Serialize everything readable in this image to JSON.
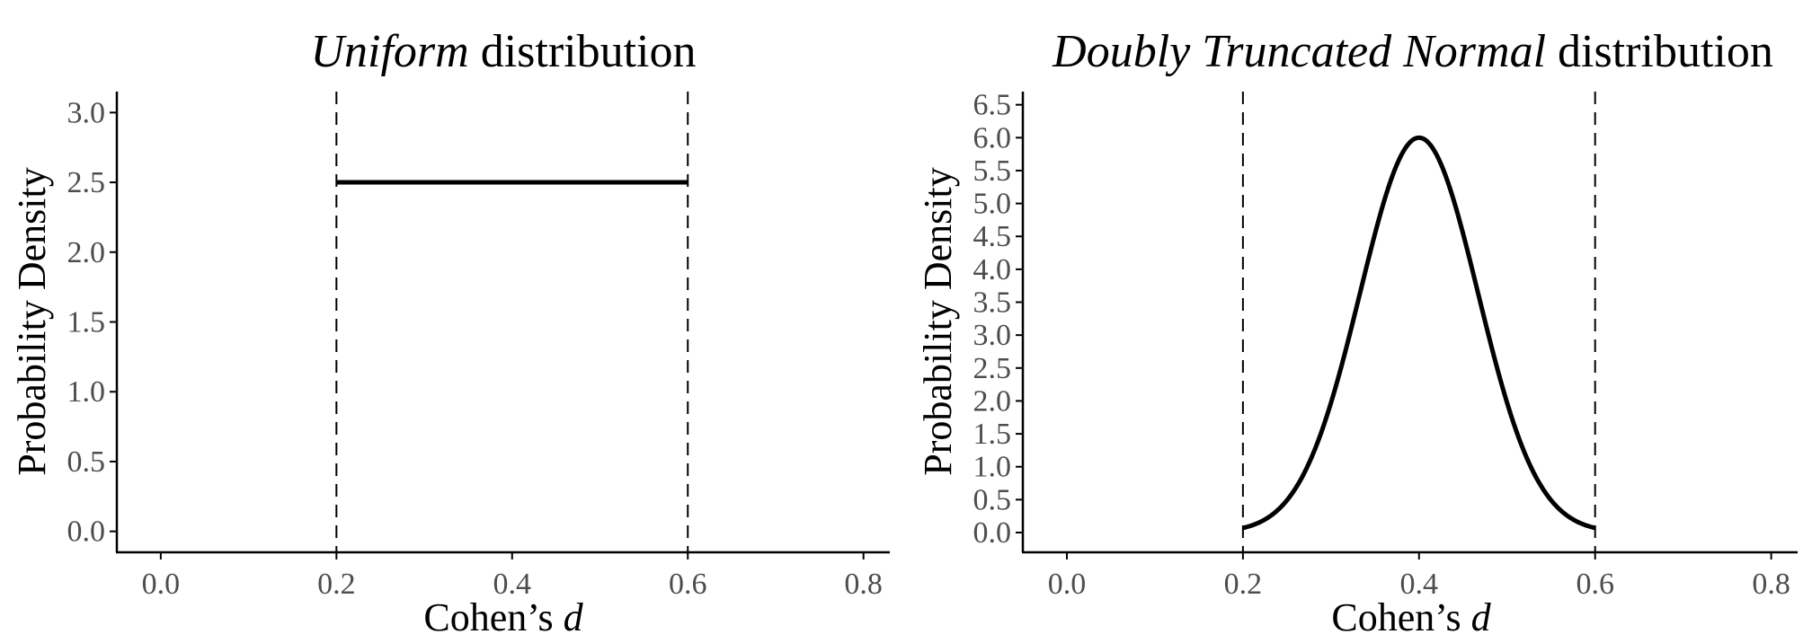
{
  "chart_data": [
    {
      "type": "line",
      "title": "Uniform distribution",
      "title_parts": {
        "italic": "Uniform",
        "plain": " distribution"
      },
      "xlabel": "Cohen’s d",
      "xlabel_parts": {
        "plain": "Cohen’s ",
        "italic": "d"
      },
      "ylabel": "Probability Density",
      "xlim": [
        -0.05,
        0.83
      ],
      "ylim": [
        -0.15,
        3.15
      ],
      "x_ticks": [
        0.0,
        0.2,
        0.4,
        0.6,
        0.8
      ],
      "x_tick_labels": [
        "0.0",
        "0.2",
        "0.4",
        "0.6",
        "0.8"
      ],
      "y_ticks": [
        0.0,
        0.5,
        1.0,
        1.5,
        2.0,
        2.5,
        3.0
      ],
      "y_tick_labels": [
        "0.0",
        "0.5",
        "1.0",
        "1.5",
        "2.0",
        "2.5",
        "3.0"
      ],
      "grid": false,
      "vlines": [
        0.2,
        0.6
      ],
      "series": [
        {
          "distribution": "uniform",
          "x": [
            0.2,
            0.6
          ],
          "y": [
            2.5,
            2.5
          ]
        }
      ]
    },
    {
      "type": "line",
      "title": "Doubly Truncated Normal distribution",
      "title_parts": {
        "italic": "Doubly Truncated Normal",
        "plain": " distribution"
      },
      "xlabel": "Cohen’s d",
      "xlabel_parts": {
        "plain": "Cohen’s ",
        "italic": "d"
      },
      "ylabel": "Probability Density",
      "xlim": [
        -0.05,
        0.83
      ],
      "ylim": [
        -0.3,
        6.7
      ],
      "x_ticks": [
        0.0,
        0.2,
        0.4,
        0.6,
        0.8
      ],
      "x_tick_labels": [
        "0.0",
        "0.2",
        "0.4",
        "0.6",
        "0.8"
      ],
      "y_ticks": [
        0.0,
        0.5,
        1.0,
        1.5,
        2.0,
        2.5,
        3.0,
        3.5,
        4.0,
        4.5,
        5.0,
        5.5,
        6.0,
        6.5
      ],
      "y_tick_labels": [
        "0.0",
        "0.5",
        "1.0",
        "1.5",
        "2.0",
        "2.5",
        "3.0",
        "3.5",
        "4.0",
        "4.5",
        "5.0",
        "5.5",
        "6.0",
        "6.5"
      ],
      "grid": false,
      "vlines": [
        0.2,
        0.6
      ],
      "series": [
        {
          "distribution": "truncated-normal",
          "x": [
            0.2,
            0.22,
            0.24,
            0.26,
            0.28,
            0.3,
            0.32,
            0.34,
            0.36,
            0.38,
            0.4,
            0.42,
            0.44,
            0.46,
            0.48,
            0.5,
            0.52,
            0.54,
            0.56,
            0.58,
            0.6
          ],
          "y": [
            0.07,
            0.18,
            0.41,
            0.83,
            1.5,
            2.43,
            3.51,
            4.59,
            5.45,
            5.94,
            6.0,
            5.94,
            5.45,
            4.59,
            3.51,
            2.43,
            1.5,
            0.83,
            0.41,
            0.18,
            0.07
          ]
        }
      ]
    }
  ]
}
